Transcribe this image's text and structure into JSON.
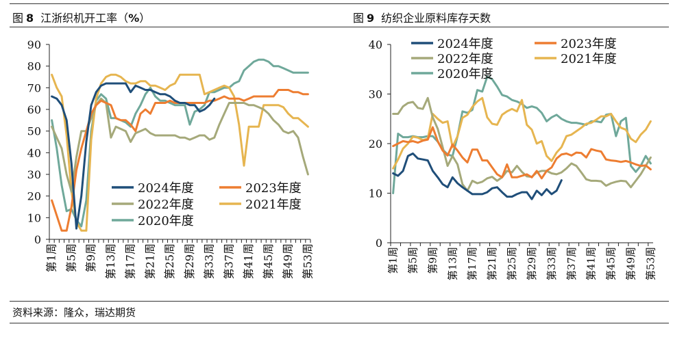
{
  "figures": [
    {
      "label": "图",
      "number": "8",
      "title": "江浙织机开工率",
      "unit": "%",
      "pre": "（",
      "post": "）"
    },
    {
      "label": "图",
      "number": "9",
      "title": "纺织企业原料库存天数",
      "unit": "",
      "pre": "",
      "post": ""
    }
  ],
  "source": "资料来源：隆众，瑞达期货",
  "colors": {
    "2024年度": "#1f4e79",
    "2023年度": "#ed7d31",
    "2022年度": "#a5a97a",
    "2021年度": "#e6b550",
    "2020年度": "#6fa89a"
  },
  "chart_data": [
    {
      "type": "line",
      "title": "江浙织机开工率（%）",
      "ylim": [
        0,
        90
      ],
      "yticks": [
        0,
        10,
        20,
        30,
        40,
        50,
        60,
        70,
        80,
        90
      ],
      "xlim": [
        1,
        53
      ],
      "x_tick_labels": [
        "第1周",
        "第5周",
        "第9周",
        "第13周",
        "第17周",
        "第21周",
        "第25周",
        "第29周",
        "第33周",
        "第37周",
        "第41周",
        "第45周",
        "第49周",
        "第53周"
      ],
      "x_tick_weeks": [
        1,
        5,
        9,
        13,
        17,
        21,
        25,
        29,
        33,
        37,
        41,
        45,
        49,
        53
      ],
      "legend_columns": 2,
      "series": [
        {
          "name": "2024年度",
          "x": [
            1,
            2,
            3,
            4,
            5,
            6,
            7,
            8,
            9,
            10,
            11,
            12,
            13,
            14,
            15,
            16,
            17,
            18,
            19,
            20,
            21,
            22,
            23,
            24,
            25,
            26,
            27,
            28,
            29,
            30,
            31,
            32,
            33,
            34
          ],
          "y": [
            66,
            65,
            62,
            55,
            35,
            5,
            20,
            45,
            62,
            68,
            71,
            72,
            72,
            72,
            72,
            72,
            68,
            71,
            70,
            69,
            69,
            68,
            67,
            67,
            66,
            64,
            63,
            63,
            62,
            62,
            59,
            60,
            62,
            65
          ]
        },
        {
          "name": "2023年度",
          "x": [
            1,
            2,
            3,
            4,
            5,
            6,
            7,
            8,
            9,
            10,
            11,
            12,
            13,
            14,
            15,
            16,
            17,
            18,
            19,
            20,
            21,
            22,
            23,
            24,
            25,
            26,
            27,
            28,
            29,
            30,
            31,
            32,
            33,
            34,
            35,
            36,
            37,
            38,
            39,
            40,
            41,
            42,
            43,
            44,
            45,
            46,
            47,
            48,
            49,
            50,
            51,
            52,
            53
          ],
          "y": [
            18,
            11,
            4,
            4,
            15,
            32,
            42,
            50,
            58,
            62,
            64,
            63,
            62,
            56,
            55,
            55,
            53,
            50,
            58,
            60,
            58,
            63,
            63,
            63,
            64,
            63,
            63,
            63,
            63,
            63,
            63,
            63,
            64,
            64,
            65,
            66,
            65,
            65,
            65,
            64,
            65,
            66,
            66,
            66,
            66,
            66,
            69,
            69,
            69,
            68,
            68,
            67,
            67
          ]
        },
        {
          "name": "2022年度",
          "x": [
            1,
            2,
            3,
            4,
            5,
            6,
            7,
            8,
            9,
            10,
            11,
            12,
            13,
            14,
            15,
            16,
            17,
            18,
            19,
            20,
            21,
            22,
            23,
            24,
            25,
            26,
            27,
            28,
            29,
            30,
            31,
            32,
            33,
            34,
            35,
            36,
            37,
            38,
            39,
            40,
            41,
            42,
            43,
            44,
            45,
            46,
            47,
            48,
            49,
            50,
            51,
            52,
            53
          ],
          "y": [
            52,
            47,
            42,
            30,
            22,
            38,
            50,
            50,
            56,
            62,
            65,
            63,
            47,
            52,
            51,
            50,
            45,
            49,
            50,
            51,
            49,
            48,
            48,
            48,
            48,
            48,
            47,
            47,
            46,
            47,
            48,
            48,
            46,
            47,
            53,
            58,
            63,
            63,
            63,
            63,
            62,
            62,
            61,
            60,
            58,
            55,
            53,
            50,
            49,
            50,
            47,
            38,
            30
          ]
        },
        {
          "name": "2021年度",
          "x": [
            1,
            2,
            3,
            4,
            5,
            6,
            7,
            8,
            9,
            10,
            11,
            12,
            13,
            14,
            15,
            16,
            17,
            18,
            19,
            20,
            21,
            22,
            23,
            24,
            25,
            26,
            27,
            28,
            29,
            30,
            31,
            32,
            33,
            34,
            35,
            36,
            37,
            38,
            39,
            40,
            41,
            42,
            43,
            44,
            45,
            46,
            47,
            48,
            49,
            50,
            51,
            52,
            53
          ],
          "y": [
            76,
            70,
            66,
            48,
            22,
            8,
            4,
            4,
            46,
            65,
            72,
            75,
            76,
            76,
            75,
            73,
            72,
            72,
            73,
            73,
            71,
            71,
            70,
            69,
            71,
            72,
            76,
            76,
            76,
            76,
            76,
            67,
            68,
            69,
            70,
            71,
            70,
            66,
            53,
            34,
            52,
            52,
            52,
            62,
            62,
            62,
            62,
            61,
            58,
            56,
            56,
            54,
            52
          ]
        },
        {
          "name": "2020年度",
          "x": [
            1,
            2,
            3,
            4,
            5,
            6,
            7,
            8,
            9,
            10,
            11,
            12,
            13,
            14,
            15,
            16,
            17,
            18,
            19,
            20,
            21,
            22,
            23,
            24,
            25,
            26,
            27,
            28,
            29,
            30,
            31,
            32,
            33,
            34,
            35,
            36,
            37,
            38,
            39,
            40,
            41,
            42,
            43,
            44,
            45,
            46,
            47,
            48,
            49,
            50,
            51,
            52,
            53
          ],
          "y": [
            55,
            42,
            25,
            13,
            14,
            9,
            6,
            18,
            50,
            64,
            67,
            65,
            56,
            56,
            55,
            54,
            52,
            58,
            62,
            67,
            70,
            66,
            64,
            64,
            63,
            62,
            62,
            62,
            53,
            59,
            60,
            62,
            68,
            68,
            69,
            70,
            70,
            72,
            73,
            78,
            80,
            82,
            83,
            83,
            82,
            80,
            80,
            79,
            78,
            77,
            77,
            77,
            77
          ]
        }
      ]
    },
    {
      "type": "line",
      "title": "纺织企业原料库存天数",
      "ylim": [
        0,
        40
      ],
      "yticks": [
        0,
        10,
        20,
        30,
        40
      ],
      "xlim": [
        1,
        53
      ],
      "x_tick_labels": [
        "第1周",
        "第5周",
        "第9周",
        "第13周",
        "第17周",
        "第21周",
        "第25周",
        "第29周",
        "第33周",
        "第37周",
        "第41周",
        "第45周",
        "第49周",
        "第53周"
      ],
      "x_tick_weeks": [
        1,
        5,
        9,
        13,
        17,
        21,
        25,
        29,
        33,
        37,
        41,
        45,
        49,
        53
      ],
      "legend_columns": 2,
      "series": [
        {
          "name": "2024年度",
          "x": [
            1,
            2,
            3,
            4,
            5,
            6,
            7,
            8,
            9,
            10,
            11,
            12,
            13,
            14,
            15,
            16,
            17,
            18,
            19,
            20,
            21,
            22,
            23,
            24,
            25,
            26,
            27,
            28,
            29,
            30,
            31,
            32,
            33,
            34,
            35
          ],
          "y": [
            14,
            13.5,
            14.5,
            17.5,
            18,
            17,
            16.8,
            16.6,
            14.5,
            13.2,
            11.8,
            11.2,
            13.2,
            12,
            11.2,
            10.5,
            9.8,
            9.8,
            9.8,
            10.2,
            11,
            11.2,
            10.2,
            9.3,
            9.3,
            9.8,
            10.2,
            10.2,
            8.8,
            10.5,
            9.6,
            10.8,
            9.8,
            10.5,
            12.6
          ]
        },
        {
          "name": "2023年度",
          "x": [
            1,
            2,
            3,
            4,
            5,
            6,
            7,
            8,
            9,
            10,
            11,
            12,
            13,
            14,
            15,
            16,
            17,
            18,
            19,
            20,
            21,
            22,
            23,
            24,
            25,
            26,
            27,
            28,
            29,
            30,
            31,
            32,
            33,
            34,
            35,
            36,
            37,
            38,
            39,
            40,
            41,
            42,
            43,
            44,
            45,
            46,
            47,
            48,
            49,
            50,
            51,
            52,
            53
          ],
          "y": [
            19.5,
            20,
            20.5,
            20.3,
            20.5,
            20.2,
            20.6,
            20.8,
            23.3,
            20.5,
            18.6,
            17.6,
            19.8,
            18.6,
            17.2,
            16.2,
            18.8,
            18.8,
            16.6,
            16.6,
            15.2,
            13.8,
            13.2,
            15.8,
            13.2,
            13.2,
            13.5,
            13.8,
            13.2,
            14.5,
            13,
            14.5,
            15.2,
            17,
            17.8,
            18,
            17.6,
            18.2,
            18.1,
            17.2,
            18.9,
            18.6,
            18.4,
            16.8,
            16.6,
            16.5,
            16.3,
            16.5,
            16.2,
            15.8,
            15.5,
            15.6,
            14.8
          ]
        },
        {
          "name": "2022年度",
          "x": [
            1,
            2,
            3,
            4,
            5,
            6,
            7,
            8,
            9,
            10,
            11,
            12,
            13,
            14,
            15,
            16,
            17,
            18,
            19,
            20,
            21,
            22,
            23,
            24,
            25,
            26,
            27,
            28,
            29,
            30,
            31,
            32,
            33,
            34,
            35,
            36,
            37,
            38,
            39,
            40,
            41,
            42,
            43,
            44,
            45,
            46,
            47,
            48,
            49,
            50,
            51,
            52,
            53
          ],
          "y": [
            26,
            26,
            27.5,
            28.2,
            28.4,
            27.2,
            27,
            29.2,
            25.3,
            23,
            19.3,
            15.5,
            17.5,
            15.8,
            11.8,
            10.5,
            12.5,
            12,
            12.3,
            13,
            13.3,
            12.5,
            13.2,
            14.5,
            14.2,
            15.5,
            14.3,
            13.4,
            13.3,
            14.2,
            14.5,
            14.5,
            14,
            13.8,
            14.2,
            15,
            16,
            15.5,
            14.2,
            12.8,
            12.5,
            12.5,
            12.4,
            11.5,
            12,
            12.3,
            12.5,
            12.4,
            11.2,
            12.5,
            13.8,
            15.5,
            17.2
          ]
        },
        {
          "name": "2021年度",
          "x": [
            1,
            2,
            3,
            4,
            5,
            6,
            7,
            8,
            9,
            10,
            11,
            12,
            13,
            14,
            15,
            16,
            17,
            18,
            19,
            20,
            21,
            22,
            23,
            24,
            25,
            26,
            27,
            28,
            29,
            30,
            31,
            32,
            33,
            34,
            35,
            36,
            37,
            38,
            39,
            40,
            41,
            42,
            43,
            44,
            45,
            46,
            47,
            48,
            49,
            50,
            51,
            52,
            53
          ],
          "y": [
            15,
            16.8,
            19,
            20,
            21.4,
            21.2,
            20.7,
            21,
            26,
            25,
            24.2,
            24.5,
            19.3,
            21.5,
            25.2,
            25.8,
            27.4,
            28.5,
            29.2,
            25.3,
            24,
            23.8,
            25.8,
            26.5,
            27,
            26.5,
            28.8,
            23.8,
            22.8,
            20,
            20.5,
            17.5,
            16.5,
            18.2,
            19.3,
            21.5,
            21.8,
            22.5,
            23.2,
            24,
            24.2,
            24.8,
            25.5,
            25.5,
            26,
            24.5,
            23.2,
            22.8,
            21,
            20.3,
            21.8,
            22.8,
            24.5
          ]
        },
        {
          "name": "2020年度",
          "x": [
            1,
            2,
            3,
            4,
            5,
            6,
            7,
            8,
            9,
            10,
            11,
            12,
            13,
            14,
            15,
            16,
            17,
            18,
            19,
            20,
            21,
            22,
            23,
            24,
            25,
            26,
            27,
            28,
            29,
            30,
            31,
            32,
            33,
            34,
            35,
            36,
            37,
            38,
            39,
            40,
            41,
            42,
            43,
            44,
            45,
            46,
            47,
            48,
            49,
            50,
            51,
            52,
            53
          ],
          "y": [
            10,
            22,
            21.3,
            21.3,
            21.5,
            21.3,
            21.3,
            21.5,
            21.5,
            20.4,
            18.8,
            17.8,
            17.5,
            21.5,
            26.5,
            26.2,
            26.8,
            30.8,
            30.5,
            33.5,
            33,
            31.5,
            29.8,
            29.5,
            28.8,
            28.5,
            28,
            27.2,
            27.5,
            27.2,
            26.2,
            24.5,
            25.3,
            25.8,
            25,
            24.5,
            24.2,
            24.2,
            24,
            23.8,
            24.5,
            24.5,
            24.3,
            25.8,
            26,
            21.5,
            24.5,
            25.2,
            15.5,
            14.3,
            15.5,
            17.5,
            16
          ]
        }
      ]
    }
  ]
}
